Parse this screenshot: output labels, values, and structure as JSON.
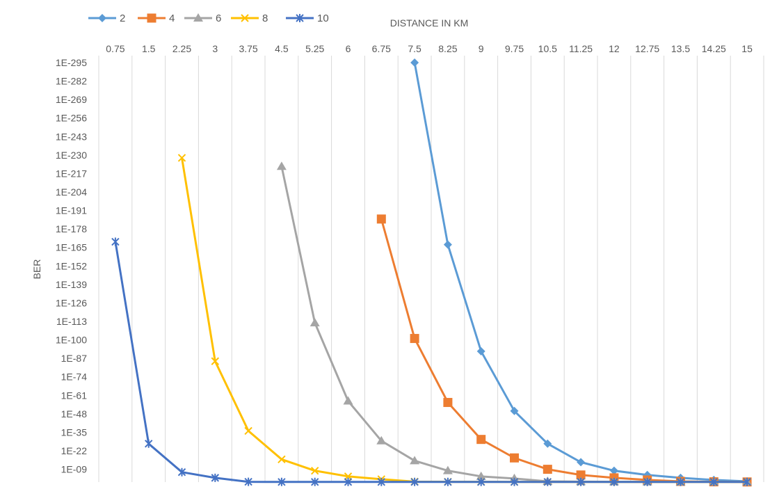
{
  "chart_data": {
    "type": "line",
    "xlabel": "DISTANCE IN KM",
    "ylabel": "BER",
    "x_axis_position": "top",
    "y_scale": "log",
    "ylim_exponent": [
      0,
      -298
    ],
    "categories": [
      "0.75",
      "1.5",
      "2.25",
      "3",
      "3.75",
      "4.5",
      "5.25",
      "6",
      "6.75",
      "7.5",
      "8.25",
      "9",
      "9.75",
      "10.5",
      "11.25",
      "12",
      "12.75",
      "13.5",
      "14.25",
      "15"
    ],
    "y_tick_labels": [
      "1E-295",
      "1E-282",
      "1E-269",
      "1E-256",
      "1E-243",
      "1E-230",
      "1E-217",
      "1E-204",
      "1E-191",
      "1E-178",
      "1E-165",
      "1E-152",
      "1E-139",
      "1E-126",
      "1E-113",
      "1E-100",
      "1E-87",
      "1E-74",
      "1E-61",
      "1E-48",
      "1E-35",
      "1E-22",
      "1E-09"
    ],
    "grid": "vertical",
    "legend_position": "top-left",
    "series": [
      {
        "name": "2",
        "color": "#5B9BD5",
        "marker": "diamond",
        "points": [
          {
            "x": "7.5",
            "exp": -295
          },
          {
            "x": "8.25",
            "exp": -167
          },
          {
            "x": "9",
            "exp": -92
          },
          {
            "x": "9.75",
            "exp": -50
          },
          {
            "x": "10.5",
            "exp": -27
          },
          {
            "x": "11.25",
            "exp": -14
          },
          {
            "x": "12",
            "exp": -8
          },
          {
            "x": "12.75",
            "exp": -5
          },
          {
            "x": "13.5",
            "exp": -3
          },
          {
            "x": "14.25",
            "exp": -1.5
          },
          {
            "x": "15",
            "exp": -0.5
          }
        ]
      },
      {
        "name": "4",
        "color": "#ED7D31",
        "marker": "square",
        "points": [
          {
            "x": "6.75",
            "exp": -185
          },
          {
            "x": "7.5",
            "exp": -101
          },
          {
            "x": "8.25",
            "exp": -56
          },
          {
            "x": "9",
            "exp": -30
          },
          {
            "x": "9.75",
            "exp": -17
          },
          {
            "x": "10.5",
            "exp": -9
          },
          {
            "x": "11.25",
            "exp": -5
          },
          {
            "x": "12",
            "exp": -3
          },
          {
            "x": "12.75",
            "exp": -1.5
          },
          {
            "x": "13.5",
            "exp": -0.5
          },
          {
            "x": "14.25",
            "exp": -0.2
          },
          {
            "x": "15",
            "exp": -0.1
          }
        ]
      },
      {
        "name": "6",
        "color": "#A5A5A5",
        "marker": "triangle",
        "points": [
          {
            "x": "4.5",
            "exp": -222
          },
          {
            "x": "5.25",
            "exp": -112
          },
          {
            "x": "6",
            "exp": -57
          },
          {
            "x": "6.75",
            "exp": -29
          },
          {
            "x": "7.5",
            "exp": -15
          },
          {
            "x": "8.25",
            "exp": -8
          },
          {
            "x": "9",
            "exp": -4
          },
          {
            "x": "9.75",
            "exp": -2.5
          },
          {
            "x": "10.5",
            "exp": -0.5
          },
          {
            "x": "11.25",
            "exp": -0.3
          },
          {
            "x": "12",
            "exp": -0.2
          },
          {
            "x": "12.75",
            "exp": -0.1
          },
          {
            "x": "13.5",
            "exp": -0.1
          },
          {
            "x": "14.25",
            "exp": -0.1
          },
          {
            "x": "15",
            "exp": -0.1
          }
        ]
      },
      {
        "name": "8",
        "color": "#FFC000",
        "marker": "x",
        "points": [
          {
            "x": "2.25",
            "exp": -228
          },
          {
            "x": "3",
            "exp": -85
          },
          {
            "x": "3.75",
            "exp": -36
          },
          {
            "x": "4.5",
            "exp": -16
          },
          {
            "x": "5.25",
            "exp": -8
          },
          {
            "x": "6",
            "exp": -4
          },
          {
            "x": "6.75",
            "exp": -2
          },
          {
            "x": "7.5",
            "exp": -0.3
          },
          {
            "x": "8.25",
            "exp": -0.2
          },
          {
            "x": "9",
            "exp": -0.2
          },
          {
            "x": "9.75",
            "exp": -0.1
          },
          {
            "x": "10.5",
            "exp": -0.1
          },
          {
            "x": "11.25",
            "exp": -0.1
          },
          {
            "x": "12",
            "exp": -0.1
          },
          {
            "x": "12.75",
            "exp": -0.1
          },
          {
            "x": "13.5",
            "exp": -0.1
          },
          {
            "x": "14.25",
            "exp": -0.1
          },
          {
            "x": "15",
            "exp": -0.1
          }
        ]
      },
      {
        "name": "10",
        "color": "#4472C4",
        "marker": "star",
        "points": [
          {
            "x": "0.75",
            "exp": -169
          },
          {
            "x": "1.5",
            "exp": -27
          },
          {
            "x": "2.25",
            "exp": -7
          },
          {
            "x": "3",
            "exp": -3
          },
          {
            "x": "3.75",
            "exp": -0.2
          },
          {
            "x": "4.5",
            "exp": -0.1
          },
          {
            "x": "5.25",
            "exp": -0.1
          },
          {
            "x": "6",
            "exp": -0.1
          },
          {
            "x": "6.75",
            "exp": -0.1
          },
          {
            "x": "7.5",
            "exp": -0.1
          },
          {
            "x": "8.25",
            "exp": -0.1
          },
          {
            "x": "9",
            "exp": -0.1
          },
          {
            "x": "9.75",
            "exp": -0.1
          },
          {
            "x": "10.5",
            "exp": -0.1
          },
          {
            "x": "11.25",
            "exp": -0.1
          },
          {
            "x": "12",
            "exp": -0.1
          },
          {
            "x": "12.75",
            "exp": -0.1
          },
          {
            "x": "13.5",
            "exp": -0.1
          },
          {
            "x": "14.25",
            "exp": -0.1
          },
          {
            "x": "15",
            "exp": -0.1
          }
        ]
      }
    ]
  }
}
